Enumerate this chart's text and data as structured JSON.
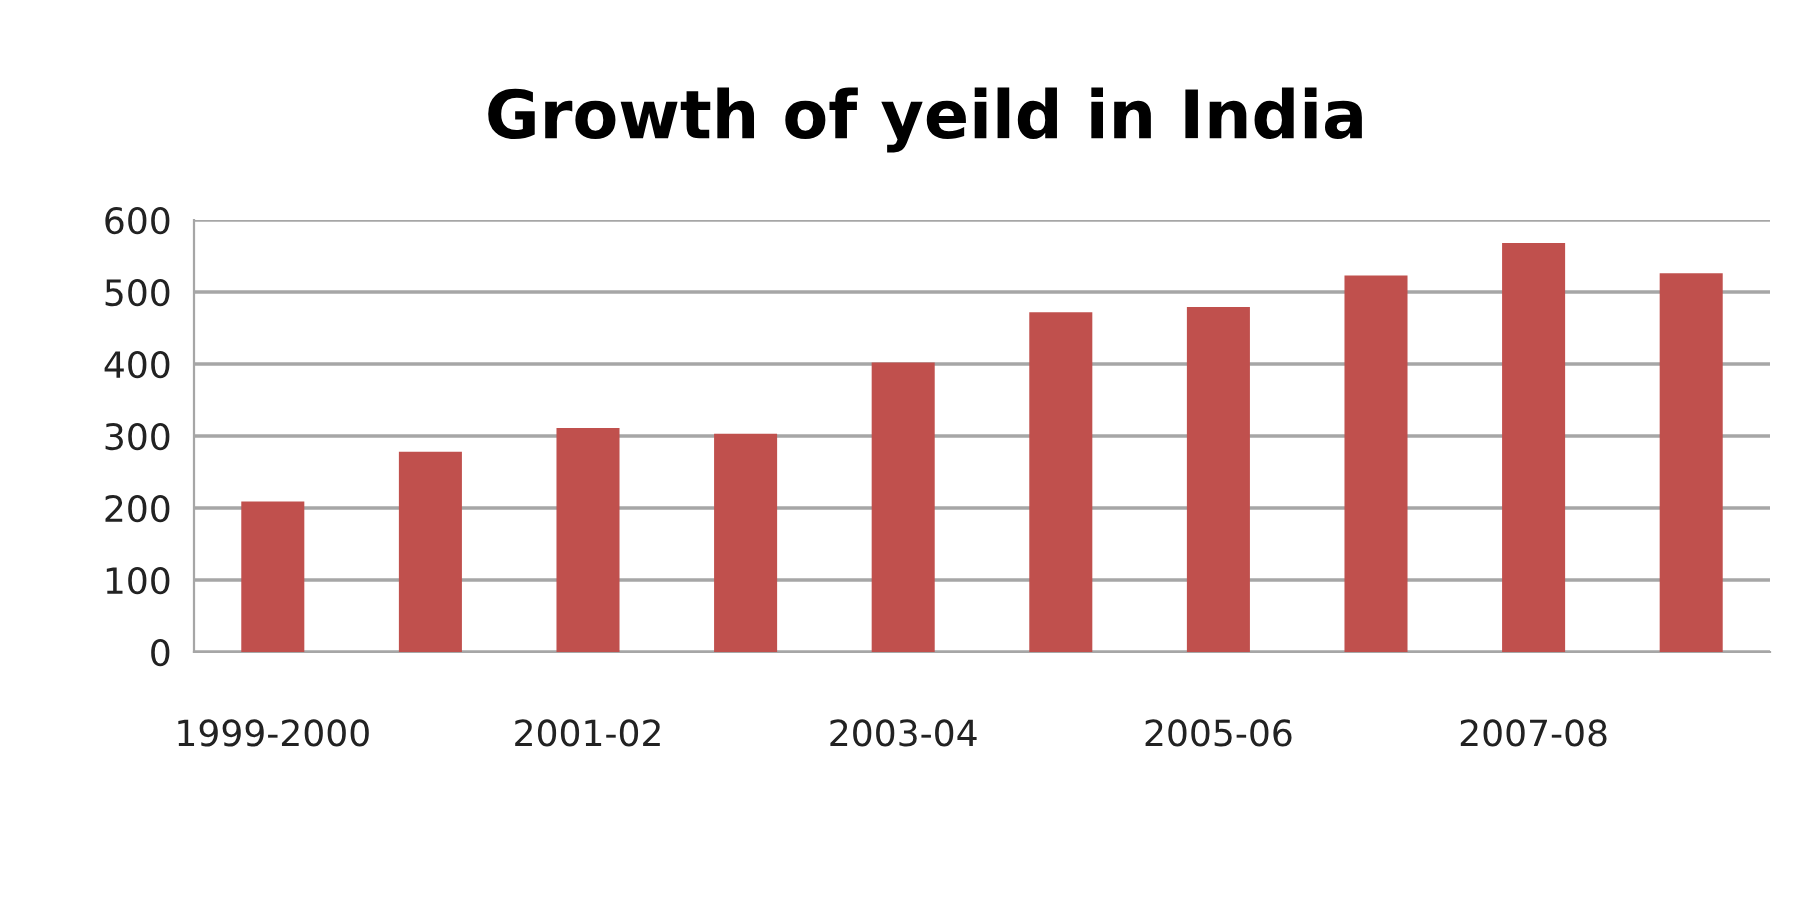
{
  "chart_data": {
    "type": "bar",
    "title": "Growth of yeild in India",
    "categories": [
      "1999-2000",
      null,
      "2001-02",
      null,
      "2003-04",
      null,
      "2005-06",
      null,
      "2007-08",
      null
    ],
    "values": [
      209,
      278,
      311,
      303,
      402,
      472,
      479,
      523,
      568,
      526
    ],
    "color": "#c0504d",
    "ylim": [
      0,
      600
    ],
    "yticks": [
      0,
      100,
      200,
      300,
      400,
      500,
      600
    ],
    "grid": "y",
    "legend": false
  }
}
